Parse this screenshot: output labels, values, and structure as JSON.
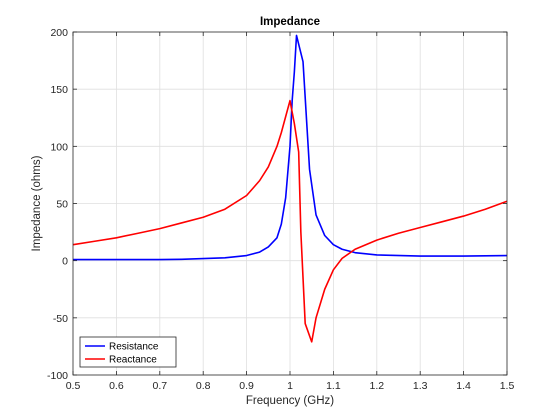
{
  "chart_data": {
    "type": "line",
    "title": "Impedance",
    "xlabel": "Frequency (GHz)",
    "ylabel": "Impedance (ohms)",
    "xlim": [
      0.5,
      1.5
    ],
    "ylim": [
      -100,
      200
    ],
    "xticks": [
      "0.5",
      "0.6",
      "0.7",
      "0.8",
      "0.9",
      "1",
      "1.1",
      "1.2",
      "1.3",
      "1.4",
      "1.5"
    ],
    "yticks": [
      "-100",
      "-50",
      "0",
      "50",
      "100",
      "150",
      "200"
    ],
    "grid": true,
    "legend_position": "bottom-left",
    "series": [
      {
        "name": "Resistance",
        "color": "#0000ff",
        "points": [
          [
            0.5,
            1
          ],
          [
            0.6,
            1
          ],
          [
            0.7,
            1
          ],
          [
            0.75,
            1.2
          ],
          [
            0.8,
            1.8
          ],
          [
            0.85,
            2.5
          ],
          [
            0.9,
            4.5
          ],
          [
            0.93,
            7.5
          ],
          [
            0.95,
            12
          ],
          [
            0.97,
            20
          ],
          [
            0.98,
            32
          ],
          [
            0.99,
            55
          ],
          [
            1.0,
            100
          ],
          [
            1.005,
            140
          ],
          [
            1.01,
            165
          ],
          [
            1.015,
            197
          ],
          [
            1.03,
            174
          ],
          [
            1.045,
            80
          ],
          [
            1.06,
            40
          ],
          [
            1.08,
            22
          ],
          [
            1.1,
            14
          ],
          [
            1.12,
            10
          ],
          [
            1.15,
            7
          ],
          [
            1.2,
            5
          ],
          [
            1.3,
            4
          ],
          [
            1.4,
            4
          ],
          [
            1.5,
            4.5
          ]
        ]
      },
      {
        "name": "Reactance",
        "color": "#ff0000",
        "points": [
          [
            0.5,
            14
          ],
          [
            0.55,
            17
          ],
          [
            0.6,
            20
          ],
          [
            0.65,
            24
          ],
          [
            0.7,
            28
          ],
          [
            0.75,
            33
          ],
          [
            0.8,
            38
          ],
          [
            0.85,
            45
          ],
          [
            0.9,
            57
          ],
          [
            0.93,
            70
          ],
          [
            0.95,
            82
          ],
          [
            0.97,
            100
          ],
          [
            0.98,
            112
          ],
          [
            0.99,
            126
          ],
          [
            1.0,
            140
          ],
          [
            1.01,
            120
          ],
          [
            1.02,
            95
          ],
          [
            1.025,
            25
          ],
          [
            1.035,
            -55
          ],
          [
            1.05,
            -71
          ],
          [
            1.06,
            -50
          ],
          [
            1.08,
            -25
          ],
          [
            1.1,
            -8
          ],
          [
            1.12,
            2
          ],
          [
            1.15,
            10
          ],
          [
            1.2,
            18
          ],
          [
            1.25,
            24
          ],
          [
            1.3,
            29
          ],
          [
            1.35,
            34
          ],
          [
            1.4,
            39
          ],
          [
            1.45,
            45
          ],
          [
            1.5,
            52
          ]
        ]
      }
    ]
  }
}
